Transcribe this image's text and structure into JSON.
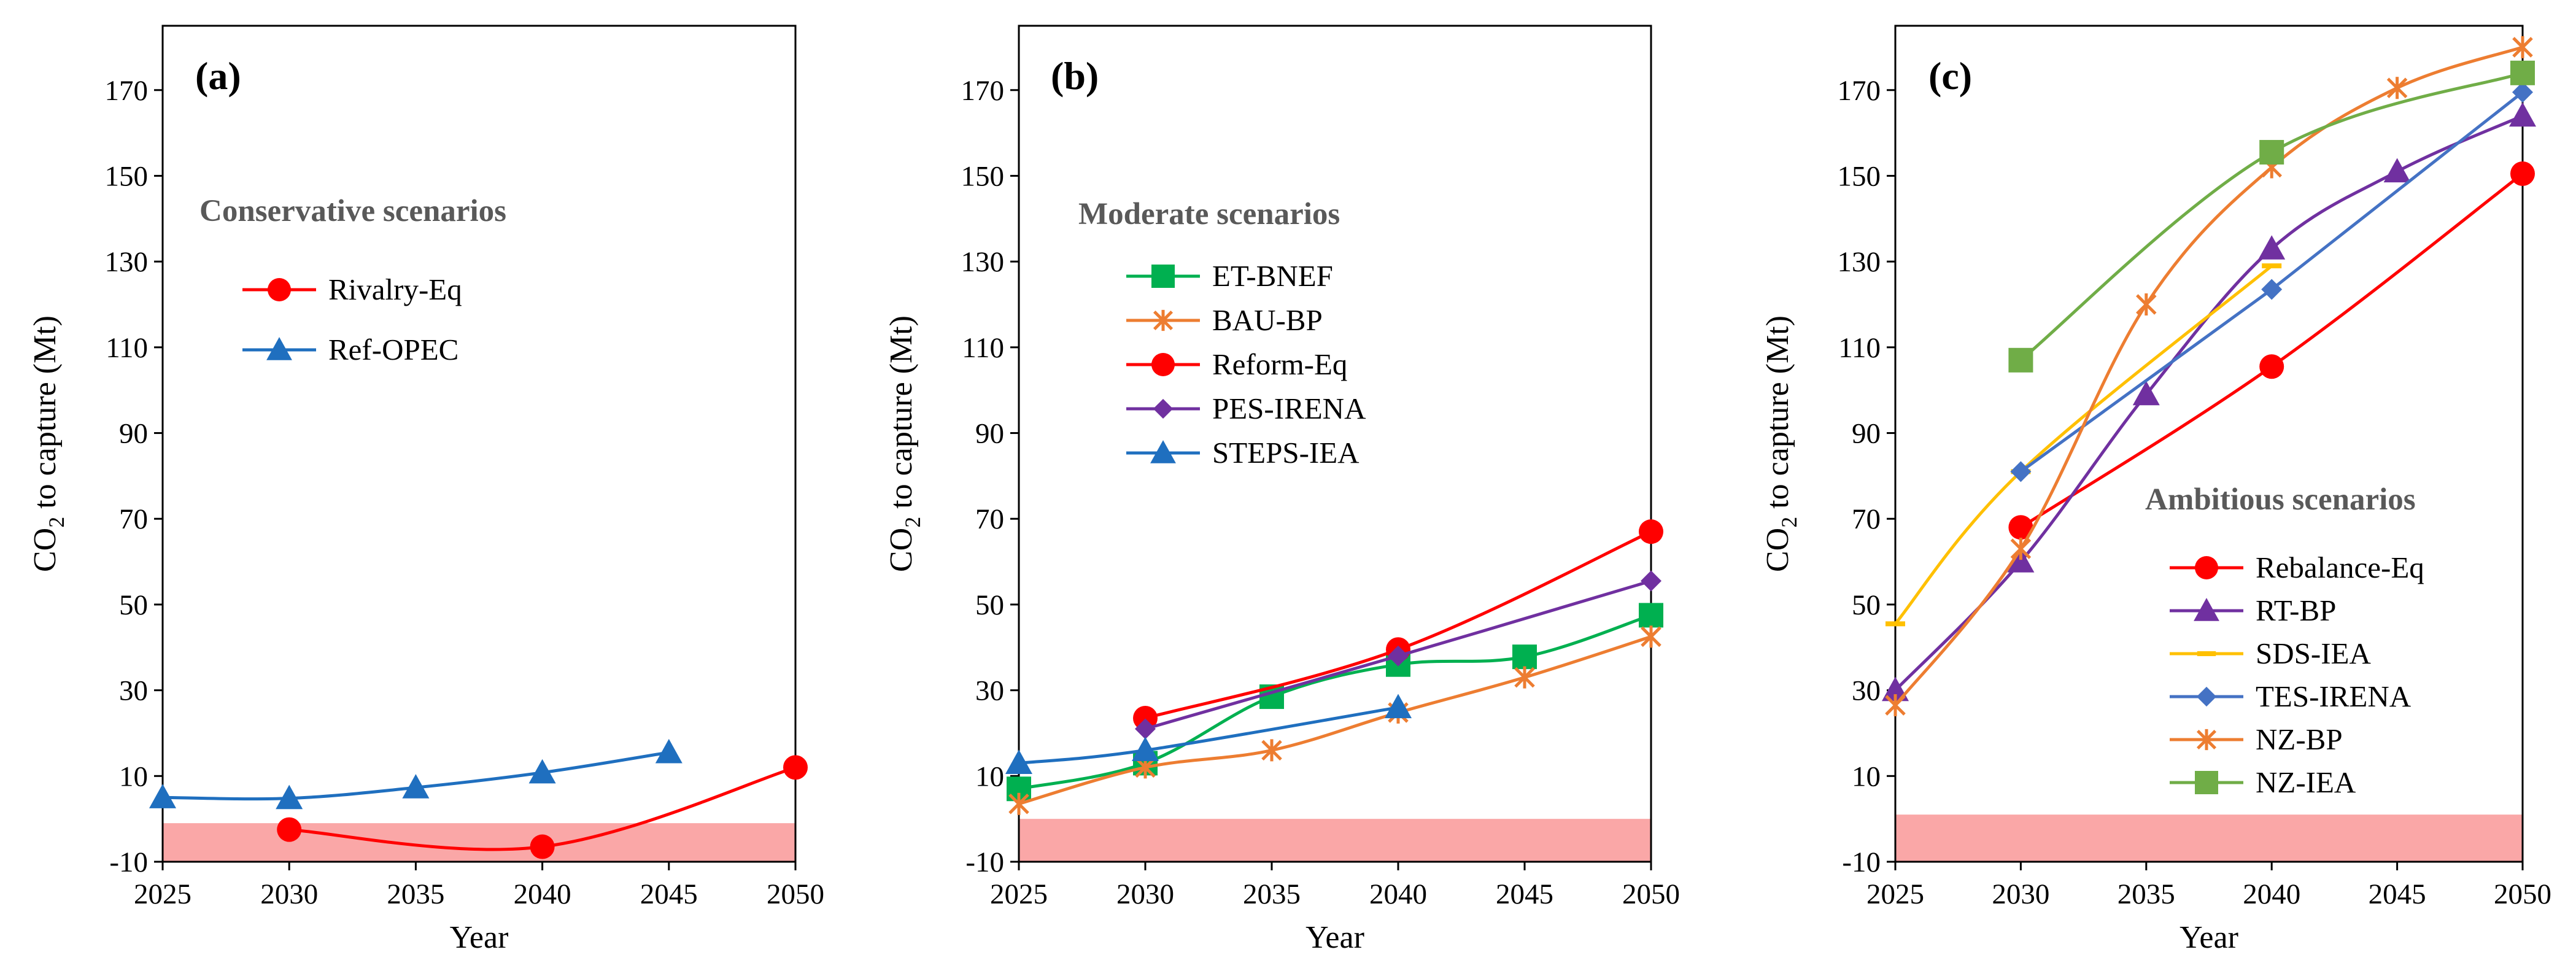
{
  "chart_data": [
    {
      "type": "line",
      "panel_label": "(a)",
      "legend_title": "Conservative scenarios",
      "xlabel": "Year",
      "ylabel": "CO2 to capture (Mt)",
      "ylabel_main": "CO",
      "ylabel_sub": "2",
      "ylabel_rest": " to capture (Mt)",
      "xlim": [
        2025,
        2050
      ],
      "ylim": [
        -10,
        185
      ],
      "x_ticks": [
        2025,
        2030,
        2035,
        2040,
        2045,
        2050
      ],
      "y_ticks": [
        -10,
        10,
        30,
        50,
        70,
        90,
        110,
        130,
        150,
        170
      ],
      "negative_band": [
        -10,
        -1
      ],
      "negative_band_color": "#FAA7A7",
      "series": [
        {
          "name": "Rivalry-Eq",
          "color": "#FF0000",
          "marker": "circle",
          "x": [
            2030,
            2040,
            2050
          ],
          "y": [
            -2.5,
            -6.5,
            12
          ],
          "smooth": true
        },
        {
          "name": "Ref-OPEC",
          "color": "#1F6FBF",
          "marker": "triangle",
          "x": [
            2025,
            2030,
            2035,
            2040,
            2045
          ],
          "y": [
            5,
            4.8,
            7.3,
            10.8,
            15.5
          ],
          "smooth": true
        }
      ]
    },
    {
      "type": "line",
      "panel_label": "(b)",
      "legend_title": "Moderate scenarios",
      "xlabel": "Year",
      "ylabel": "CO2 to capture (Mt)",
      "ylabel_main": "CO",
      "ylabel_sub": "2",
      "ylabel_rest": " to capture (Mt)",
      "xlim": [
        2025,
        2050
      ],
      "ylim": [
        -10,
        185
      ],
      "x_ticks": [
        2025,
        2030,
        2035,
        2040,
        2045,
        2050
      ],
      "y_ticks": [
        -10,
        10,
        30,
        50,
        70,
        90,
        110,
        130,
        150,
        170
      ],
      "negative_band": [
        -10,
        0
      ],
      "negative_band_color": "#FAA7A7",
      "series": [
        {
          "name": "ET-BNEF",
          "color": "#00B050",
          "marker": "square",
          "x": [
            2025,
            2030,
            2035,
            2040,
            2045,
            2050
          ],
          "y": [
            7,
            13,
            28.5,
            36,
            37.8,
            47.5
          ],
          "smooth": true
        },
        {
          "name": "BAU-BP",
          "color": "#ED7D31",
          "marker": "star",
          "x": [
            2025,
            2030,
            2035,
            2040,
            2045,
            2050
          ],
          "y": [
            3.5,
            12,
            16,
            24.8,
            33,
            42.5
          ],
          "smooth": true
        },
        {
          "name": "Reform-Eq",
          "color": "#FF0000",
          "marker": "circle",
          "x": [
            2030,
            2040,
            2050
          ],
          "y": [
            23.5,
            39.5,
            67
          ],
          "smooth": true
        },
        {
          "name": "PES-IRENA",
          "color": "#7030A0",
          "marker": "diamond",
          "x": [
            2030,
            2040,
            2050
          ],
          "y": [
            21,
            38,
            55.5
          ],
          "smooth": true
        },
        {
          "name": "STEPS-IEA",
          "color": "#1F6FBF",
          "marker": "triangle",
          "x": [
            2025,
            2030,
            2040
          ],
          "y": [
            13,
            16,
            26
          ],
          "smooth": true
        }
      ]
    },
    {
      "type": "line",
      "panel_label": "(c)",
      "legend_title": "Ambitious scenarios",
      "xlabel": "Year",
      "ylabel": "CO2 to capture (Mt)",
      "ylabel_main": "CO",
      "ylabel_sub": "2",
      "ylabel_rest": " to capture (Mt)",
      "xlim": [
        2025,
        2050
      ],
      "ylim": [
        -10,
        185
      ],
      "x_ticks": [
        2025,
        2030,
        2035,
        2040,
        2045,
        2050
      ],
      "y_ticks": [
        -10,
        10,
        30,
        50,
        70,
        90,
        110,
        130,
        150,
        170
      ],
      "negative_band": [
        -10,
        1
      ],
      "negative_band_color": "#FAA7A7",
      "series": [
        {
          "name": "Rebalance-Eq",
          "color": "#FF0000",
          "marker": "circle",
          "x": [
            2030,
            2040,
            2050
          ],
          "y": [
            68,
            105.5,
            150.5
          ],
          "smooth": true
        },
        {
          "name": "RT-BP",
          "color": "#7030A0",
          "marker": "triangle",
          "x": [
            2025,
            2030,
            2035,
            2040,
            2045,
            2050
          ],
          "y": [
            30,
            60,
            99,
            133,
            151,
            164
          ],
          "smooth": true
        },
        {
          "name": "SDS-IEA",
          "color": "#FFC000",
          "marker": "dash",
          "x": [
            2025,
            2030,
            2040
          ],
          "y": [
            45.5,
            81,
            129
          ],
          "smooth": true
        },
        {
          "name": "TES-IRENA",
          "color": "#4472C4",
          "marker": "diamond",
          "x": [
            2030,
            2040,
            2050
          ],
          "y": [
            81,
            123.5,
            169.5
          ],
          "smooth": false
        },
        {
          "name": "NZ-BP",
          "color": "#ED7D31",
          "marker": "star",
          "x": [
            2025,
            2030,
            2035,
            2040,
            2045,
            2050
          ],
          "y": [
            26.5,
            63,
            120,
            152,
            170.5,
            180
          ],
          "smooth": true
        },
        {
          "name": "NZ-IEA",
          "color": "#70AD47",
          "marker": "square",
          "x": [
            2030,
            2040,
            2050
          ],
          "y": [
            107,
            155.5,
            174
          ],
          "smooth": true
        }
      ]
    }
  ]
}
